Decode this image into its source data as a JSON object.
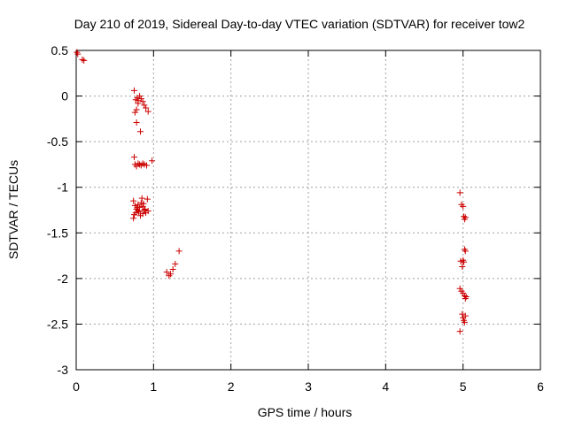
{
  "chart_data": {
    "type": "scatter",
    "title": "Day 210 of 2019, Sidereal Day-to-day VTEC variation (SDTVAR) for receiver tow2",
    "xlabel": "GPS time / hours",
    "ylabel": "SDTVAR / TECUs",
    "xlim": [
      0,
      6
    ],
    "ylim": [
      -3,
      0.5
    ],
    "xticks": [
      0,
      1,
      2,
      3,
      4,
      5,
      6
    ],
    "xtick_labels": [
      "0",
      "1",
      "2",
      "3",
      "4",
      "5",
      "6"
    ],
    "yticks": [
      0.5,
      0,
      -0.5,
      -1,
      -1.5,
      -2,
      -2.5,
      -3
    ],
    "ytick_labels": [
      "0.5",
      "0",
      "-0.5",
      "-1",
      "-1.5",
      "-2",
      "-2.5",
      "-3"
    ],
    "grid": true,
    "marker": "+",
    "marker_color": "#cc0000",
    "series": [
      {
        "name": "tow2",
        "points": [
          [
            0.01,
            0.48
          ],
          [
            0.02,
            0.46
          ],
          [
            0.08,
            0.4
          ],
          [
            0.1,
            0.39
          ],
          [
            0.75,
            0.06
          ],
          [
            0.77,
            -0.04
          ],
          [
            0.79,
            -0.02
          ],
          [
            0.8,
            -0.05
          ],
          [
            0.82,
            0.0
          ],
          [
            0.84,
            -0.03
          ],
          [
            0.86,
            -0.06
          ],
          [
            0.88,
            -0.1
          ],
          [
            0.76,
            -0.18
          ],
          [
            0.78,
            -0.15
          ],
          [
            0.8,
            -0.08
          ],
          [
            0.9,
            -0.13
          ],
          [
            0.93,
            -0.17
          ],
          [
            0.78,
            -0.29
          ],
          [
            0.83,
            -0.39
          ],
          [
            0.75,
            -0.67
          ],
          [
            0.76,
            -0.75
          ],
          [
            0.78,
            -0.77
          ],
          [
            0.8,
            -0.74
          ],
          [
            0.82,
            -0.75
          ],
          [
            0.84,
            -0.76
          ],
          [
            0.86,
            -0.74
          ],
          [
            0.88,
            -0.75
          ],
          [
            0.91,
            -0.76
          ],
          [
            0.98,
            -0.71
          ],
          [
            0.74,
            -1.15
          ],
          [
            0.76,
            -1.2
          ],
          [
            0.78,
            -1.24
          ],
          [
            0.8,
            -1.19
          ],
          [
            0.82,
            -1.22
          ],
          [
            0.84,
            -1.17
          ],
          [
            0.86,
            -1.21
          ],
          [
            0.88,
            -1.25
          ],
          [
            0.9,
            -1.28
          ],
          [
            0.92,
            -1.13
          ],
          [
            0.75,
            -1.3
          ],
          [
            0.77,
            -1.28
          ],
          [
            0.8,
            -1.26
          ],
          [
            0.83,
            -1.31
          ],
          [
            0.85,
            -1.12
          ],
          [
            0.87,
            -1.18
          ],
          [
            0.89,
            -1.24
          ],
          [
            0.74,
            -1.34
          ],
          [
            0.79,
            -1.22
          ],
          [
            0.81,
            -1.27
          ],
          [
            0.93,
            -1.26
          ],
          [
            0.86,
            -1.29
          ],
          [
            1.17,
            -1.93
          ],
          [
            1.2,
            -1.97
          ],
          [
            1.22,
            -1.95
          ],
          [
            1.25,
            -1.9
          ],
          [
            1.28,
            -1.84
          ],
          [
            1.33,
            -1.7
          ],
          [
            4.96,
            -1.06
          ],
          [
            4.98,
            -1.19
          ],
          [
            5.0,
            -1.21
          ],
          [
            5.01,
            -1.32
          ],
          [
            5.02,
            -1.35
          ],
          [
            5.03,
            -1.33
          ],
          [
            5.02,
            -1.68
          ],
          [
            5.03,
            -1.7
          ],
          [
            4.97,
            -1.81
          ],
          [
            4.99,
            -1.87
          ],
          [
            5.0,
            -1.8
          ],
          [
            5.01,
            -1.82
          ],
          [
            4.96,
            -2.11
          ],
          [
            4.98,
            -2.14
          ],
          [
            5.0,
            -2.16
          ],
          [
            5.02,
            -2.19
          ],
          [
            5.03,
            -2.22
          ],
          [
            5.04,
            -2.2
          ],
          [
            4.99,
            -2.39
          ],
          [
            5.0,
            -2.43
          ],
          [
            5.01,
            -2.46
          ],
          [
            5.03,
            -2.41
          ],
          [
            5.02,
            -2.48
          ],
          [
            4.96,
            -2.58
          ]
        ]
      }
    ]
  }
}
